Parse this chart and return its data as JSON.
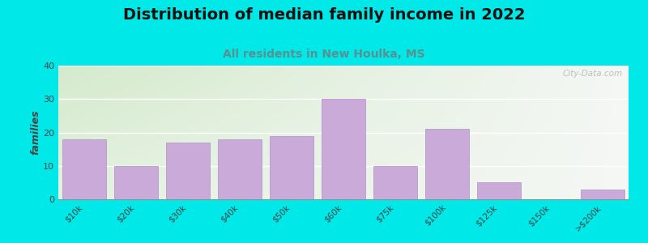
{
  "title": "Distribution of median family income in 2022",
  "subtitle": "All residents in New Houlka, MS",
  "categories": [
    "$10k",
    "$20k",
    "$30k",
    "$40k",
    "$50k",
    "$60k",
    "$75k",
    "$100k",
    "$125k",
    "$150k",
    ">$200k"
  ],
  "values": [
    18,
    10,
    17,
    18,
    19,
    30,
    10,
    21,
    5,
    0,
    3
  ],
  "bar_color": "#c9aad8",
  "bar_edgecolor": "#b090c8",
  "background_outer": "#00e8e8",
  "background_plot_topleft": "#d8ecd0",
  "background_plot_right": "#f0f0f0",
  "background_plot_bottom": "#f8f8f8",
  "title_fontsize": 14,
  "subtitle_fontsize": 10,
  "subtitle_color": "#5a9090",
  "ylabel": "families",
  "ylabel_fontsize": 9,
  "ylim": [
    0,
    40
  ],
  "yticks": [
    0,
    10,
    20,
    30,
    40
  ],
  "watermark": "City-Data.com",
  "title_fontweight": "bold"
}
